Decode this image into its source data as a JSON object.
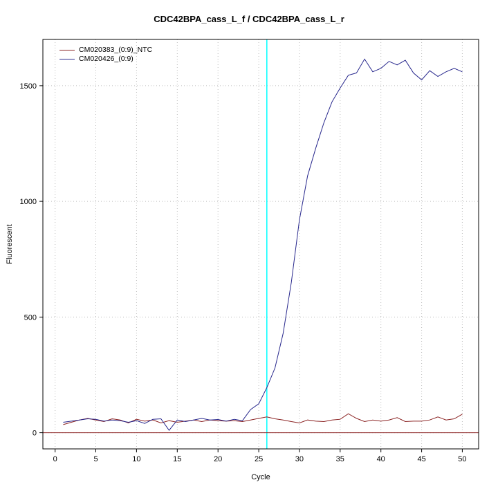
{
  "title": "CDC42BPA_cass_L_f / CDC42BPA_cass_L_r",
  "chart_data": {
    "type": "line",
    "title": "CDC42BPA_cass_L_f / CDC42BPA_cass_L_r",
    "xlabel": "Cycle",
    "ylabel": "Fluorescent",
    "xlim": [
      -1.5,
      52
    ],
    "ylim": [
      -70,
      1700
    ],
    "xticks": [
      0,
      5,
      10,
      15,
      20,
      25,
      30,
      35,
      40,
      45,
      50
    ],
    "yticks": [
      0,
      500,
      1000,
      1500
    ],
    "grid": "dotted",
    "grid_color": "#bcbcbc",
    "legend_position": "top-left",
    "marker_line": {
      "x": 26,
      "color": "#00ffff"
    },
    "hline": {
      "y": 0,
      "color": "#8b2222"
    },
    "series": [
      {
        "name": "CM020383_(0:9)_NTC",
        "color": "#8b2323",
        "x": [
          1,
          2,
          3,
          4,
          5,
          6,
          7,
          8,
          9,
          10,
          11,
          12,
          13,
          14,
          15,
          16,
          17,
          18,
          19,
          20,
          21,
          22,
          23,
          24,
          25,
          26,
          27,
          28,
          29,
          30,
          31,
          32,
          33,
          34,
          35,
          36,
          37,
          38,
          39,
          40,
          41,
          42,
          43,
          44,
          45,
          46,
          47,
          48,
          49,
          50
        ],
        "values": [
          35,
          45,
          55,
          62,
          55,
          48,
          60,
          55,
          42,
          58,
          50,
          55,
          42,
          52,
          45,
          50,
          55,
          48,
          55,
          52,
          50,
          52,
          48,
          55,
          62,
          68,
          60,
          55,
          48,
          42,
          55,
          50,
          48,
          55,
          58,
          82,
          62,
          48,
          55,
          50,
          55,
          65,
          48,
          50,
          50,
          55,
          68,
          55,
          60,
          80
        ]
      },
      {
        "name": "CM020426_(0:9)",
        "color": "#26268c",
        "x": [
          1,
          2,
          3,
          4,
          5,
          6,
          7,
          8,
          9,
          10,
          11,
          12,
          13,
          14,
          15,
          16,
          17,
          18,
          19,
          20,
          21,
          22,
          23,
          24,
          25,
          26,
          27,
          28,
          29,
          30,
          31,
          32,
          33,
          34,
          35,
          36,
          37,
          38,
          39,
          40,
          41,
          42,
          43,
          44,
          45,
          46,
          47,
          48,
          49,
          50
        ],
        "values": [
          45,
          50,
          55,
          60,
          58,
          50,
          55,
          52,
          45,
          52,
          40,
          58,
          60,
          10,
          55,
          48,
          55,
          62,
          55,
          57,
          50,
          58,
          52,
          100,
          125,
          195,
          280,
          430,
          650,
          920,
          1110,
          1230,
          1340,
          1430,
          1490,
          1545,
          1555,
          1615,
          1560,
          1575,
          1605,
          1590,
          1610,
          1555,
          1525,
          1565,
          1540,
          1560,
          1575,
          1560
        ]
      }
    ]
  }
}
